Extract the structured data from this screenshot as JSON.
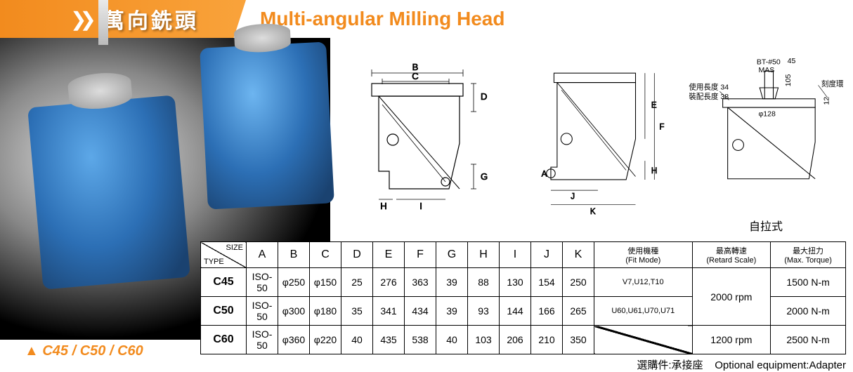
{
  "header": {
    "zh_title": "萬向銑頭",
    "en_title": "Multi-angular Milling Head"
  },
  "model_label": "C45 / C50 / C60",
  "colors": {
    "accent": "#f28b1e",
    "device_blue": "#2c6fb5",
    "bg_dark": "#000000",
    "line": "#000000"
  },
  "diagram1": {
    "dims": [
      "B",
      "C",
      "D",
      "G",
      "H",
      "I"
    ]
  },
  "diagram2": {
    "dims": [
      "A",
      "E",
      "F",
      "H",
      "J",
      "K"
    ]
  },
  "diagram3": {
    "caption": "自拉式",
    "annotations": {
      "use_len": "使用長度 34",
      "mount_len": "裝配長度 38",
      "bt": "BT-#50",
      "mas": "MAS",
      "d45": "45",
      "d105": "105",
      "phi128": "φ128",
      "d12": "12",
      "ring": "刻度環"
    }
  },
  "table": {
    "corner_size": "SIZE",
    "corner_type": "TYPE",
    "columns": [
      "A",
      "B",
      "C",
      "D",
      "E",
      "F",
      "G",
      "H",
      "I",
      "J",
      "K"
    ],
    "col_fitmode": {
      "zh": "使用機種",
      "en": "(Fit Mode)"
    },
    "col_retard": {
      "zh": "最高轉速",
      "en": "(Retard Scale)"
    },
    "col_torque": {
      "zh": "最大扭力",
      "en": "(Max. Torque)"
    },
    "rows": [
      {
        "type": "C45",
        "cells": [
          "ISO-50",
          "φ250",
          "φ150",
          "25",
          "276",
          "363",
          "39",
          "88",
          "130",
          "154",
          "250"
        ],
        "fitmode": "V7,U12,T10",
        "retard": "2000 rpm",
        "torque": "1500 N-m",
        "retard_rowspan": 2
      },
      {
        "type": "C50",
        "cells": [
          "ISO-50",
          "φ300",
          "φ180",
          "35",
          "341",
          "434",
          "39",
          "93",
          "144",
          "166",
          "265"
        ],
        "fitmode": "U60,U61,U70,U71",
        "torque": "2000 N-m"
      },
      {
        "type": "C60",
        "cells": [
          "ISO-50",
          "φ360",
          "φ220",
          "40",
          "435",
          "538",
          "40",
          "103",
          "206",
          "210",
          "350"
        ],
        "fitmode": "DIAG",
        "retard": "1200 rpm",
        "torque": "2500 N-m"
      }
    ]
  },
  "footnote": {
    "zh": "選購件:承接座",
    "en": "Optional equipment:Adapter"
  }
}
